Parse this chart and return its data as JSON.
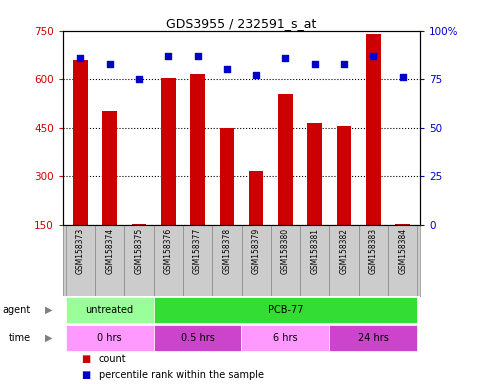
{
  "title": "GDS3955 / 232591_s_at",
  "samples": [
    "GSM158373",
    "GSM158374",
    "GSM158375",
    "GSM158376",
    "GSM158377",
    "GSM158378",
    "GSM158379",
    "GSM158380",
    "GSM158381",
    "GSM158382",
    "GSM158383",
    "GSM158384"
  ],
  "counts": [
    660,
    500,
    152,
    605,
    615,
    450,
    315,
    555,
    465,
    455,
    740,
    152
  ],
  "percentiles": [
    86,
    83,
    75,
    87,
    87,
    80,
    77,
    86,
    83,
    83,
    87,
    76
  ],
  "bar_color": "#cc0000",
  "dot_color": "#0000cc",
  "ylim_left": [
    150,
    750
  ],
  "yticks_left": [
    150,
    300,
    450,
    600,
    750
  ],
  "ylim_right": [
    0,
    100
  ],
  "yticks_right": [
    0,
    25,
    50,
    75,
    100
  ],
  "agent_groups": [
    {
      "label": "untreated",
      "start": 0,
      "end": 3,
      "color": "#99ff99"
    },
    {
      "label": "PCB-77",
      "start": 3,
      "end": 12,
      "color": "#33dd33"
    }
  ],
  "time_groups": [
    {
      "label": "0 hrs",
      "start": 0,
      "end": 3,
      "color": "#ff99ff"
    },
    {
      "label": "0.5 hrs",
      "start": 3,
      "end": 6,
      "color": "#cc44cc"
    },
    {
      "label": "6 hrs",
      "start": 6,
      "end": 9,
      "color": "#ff99ff"
    },
    {
      "label": "24 hrs",
      "start": 9,
      "end": 12,
      "color": "#cc44cc"
    }
  ],
  "legend_items": [
    {
      "label": "count",
      "color": "#cc0000"
    },
    {
      "label": "percentile rank within the sample",
      "color": "#0000cc"
    }
  ],
  "bg_color": "#ffffff",
  "grid_color": "#000000",
  "sample_bg_color": "#cccccc"
}
